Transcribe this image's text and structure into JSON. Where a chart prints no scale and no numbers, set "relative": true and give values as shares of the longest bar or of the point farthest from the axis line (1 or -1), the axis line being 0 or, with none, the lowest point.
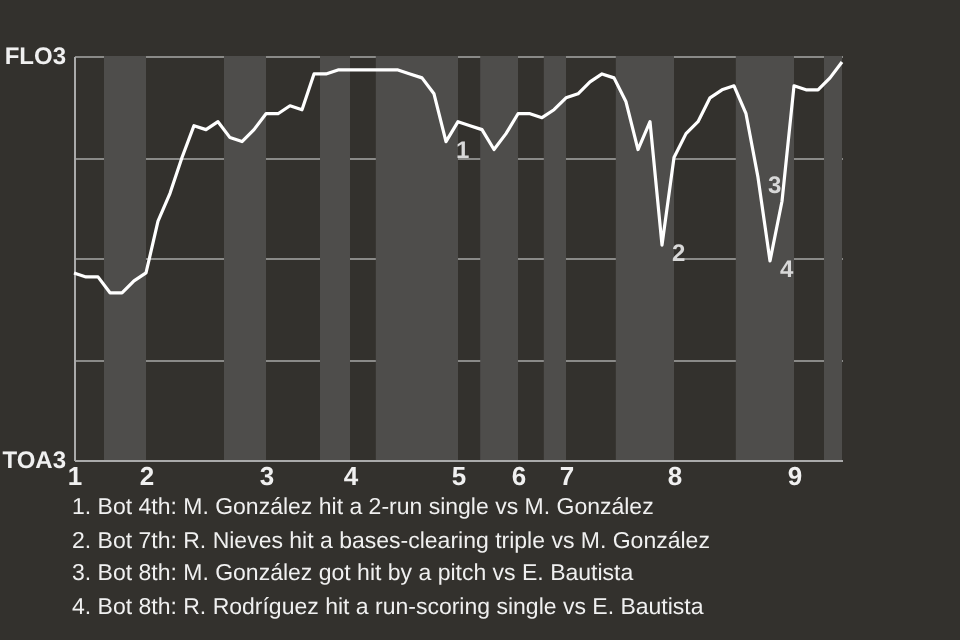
{
  "chart_data": {
    "type": "line",
    "relative": true,
    "categories": [
      "1",
      null,
      null,
      null,
      null,
      null,
      "2",
      null,
      null,
      null,
      null,
      null,
      null,
      null,
      null,
      null,
      "3",
      null,
      null,
      null,
      null,
      null,
      null,
      "4",
      null,
      null,
      null,
      null,
      null,
      null,
      null,
      null,
      "5",
      null,
      null,
      null,
      null,
      "6",
      null,
      null,
      null,
      "7",
      null,
      null,
      null,
      null,
      null,
      null,
      null,
      null,
      "8",
      null,
      null,
      null,
      null,
      null,
      null,
      null,
      null,
      null,
      "9",
      null,
      null,
      null,
      null
    ],
    "grid": "y",
    "series": [
      {
        "color": "#ffffff",
        "values": [
          0.47,
          0.46,
          0.46,
          0.42,
          0.42,
          0.45,
          0.47,
          0.6,
          0.67,
          0.76,
          0.84,
          0.83,
          0.85,
          0.81,
          0.8,
          0.83,
          0.87,
          0.87,
          0.89,
          0.88,
          0.97,
          0.97,
          0.98,
          0.98,
          0.98,
          0.98,
          0.98,
          0.98,
          0.97,
          0.96,
          0.92,
          0.8,
          0.85,
          0.84,
          0.83,
          0.78,
          0.82,
          0.87,
          0.87,
          0.86,
          0.88,
          0.91,
          0.92,
          0.95,
          0.97,
          0.96,
          0.9,
          0.78,
          0.85,
          0.54,
          0.76,
          0.82,
          0.85,
          0.91,
          0.93,
          0.94,
          0.87,
          0.71,
          0.5,
          0.65,
          0.94,
          0.93,
          0.93,
          0.96,
          1
        ],
        "line_style": "solid"
      }
    ],
    "annotations": [
      "FLO3",
      "TOA3",
      "1",
      "2",
      "3",
      "4",
      "1. Bot 4th: M. González hit a 2-run single vs M. González",
      "2. Bot 7th: R. Nieves hit a bases-clearing triple vs M. González",
      "3. Bot 8th: M. González got hit by a pitch vs E. Bautista",
      "4. Bot 8th: R. Rodríguez hit a run-scoring single vs E. Bautista"
    ]
  }
}
